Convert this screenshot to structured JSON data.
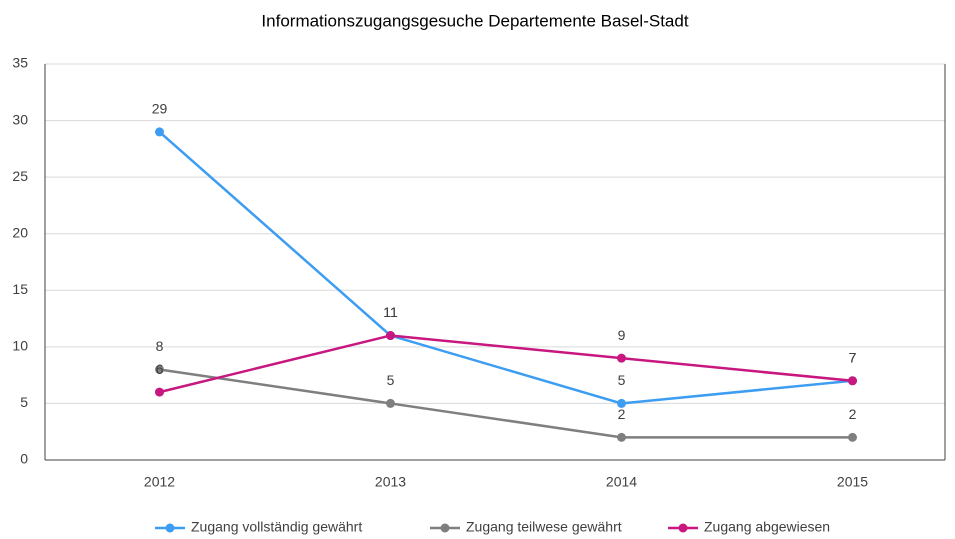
{
  "chart_data": {
    "type": "line",
    "title": "Informationszugangsgesuche Departemente Basel-Stadt",
    "categories": [
      "2012",
      "2013",
      "2014",
      "2015"
    ],
    "series": [
      {
        "name": "Zugang vollständig gewährt",
        "color": "#3d9df2",
        "values": [
          29,
          11,
          5,
          7
        ]
      },
      {
        "name": "Zugang teilwese gewährt",
        "color": "#7f7f7f",
        "values": [
          8,
          5,
          2,
          2
        ]
      },
      {
        "name": "Zugang abgewiesen",
        "color": "#c8177f",
        "values": [
          6,
          11,
          9,
          7
        ]
      }
    ],
    "ylim": [
      0,
      35
    ],
    "yticks": [
      0,
      5,
      10,
      15,
      20,
      25,
      30,
      35
    ],
    "grid": true,
    "legend": "bottom"
  }
}
